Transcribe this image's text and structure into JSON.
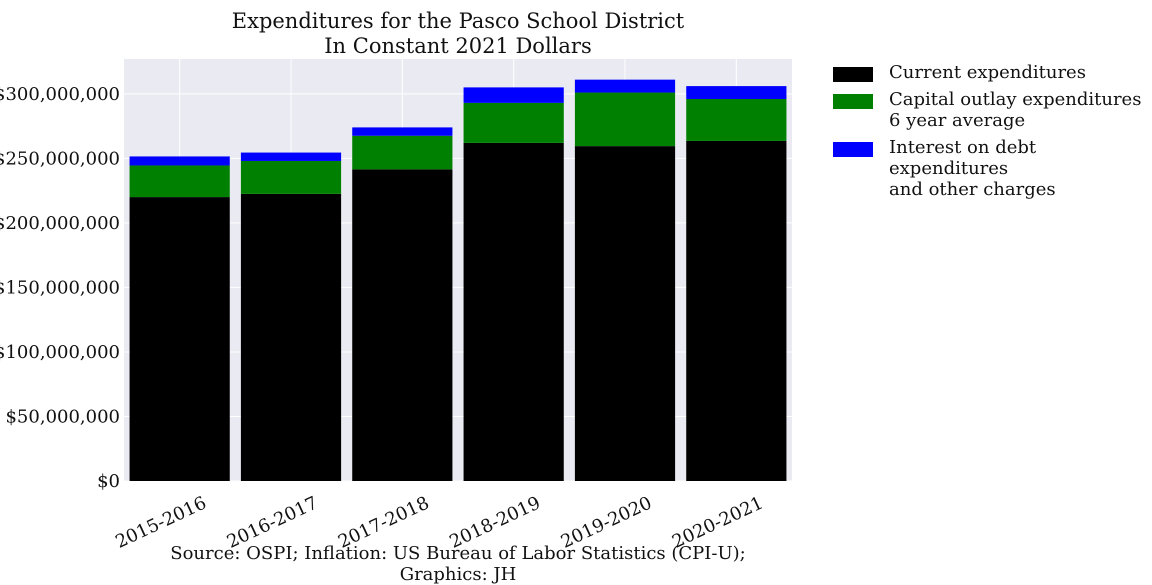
{
  "chart_data": {
    "type": "bar",
    "stacked": true,
    "title": "Expenditures for the Pasco School District",
    "subtitle": "In Constant 2021 Dollars",
    "xlabel": "",
    "ylabel": "",
    "categories": [
      "2015-2016",
      "2016-2017",
      "2017-2018",
      "2018-2019",
      "2019-2020",
      "2020-2021"
    ],
    "series": [
      {
        "name": "Current expenditures",
        "color": "#000000",
        "values": [
          220000000,
          222500000,
          241500000,
          262000000,
          259500000,
          263500000
        ]
      },
      {
        "name": "Capital outlay expenditures 6 year average",
        "name_lines": [
          "Capital outlay expenditures",
          "6 year average"
        ],
        "color": "#008000",
        "values": [
          24500000,
          25500000,
          26000000,
          31000000,
          41500000,
          32500000
        ]
      },
      {
        "name": "Interest on debt expenditures and other charges",
        "name_lines": [
          "Interest on debt expenditures",
          "and other charges"
        ],
        "color": "#0000ff",
        "values": [
          7000000,
          6500000,
          6500000,
          12000000,
          10000000,
          10000000
        ]
      }
    ],
    "ylim": [
      0,
      327000000
    ],
    "yticks": [
      0,
      50000000,
      100000000,
      150000000,
      200000000,
      250000000,
      300000000
    ],
    "ytick_labels": [
      "$0",
      "$50,000,000",
      "$100,000,000",
      "$150,000,000",
      "$200,000,000",
      "$250,000,000",
      "$300,000,000"
    ],
    "grid": true,
    "legend_position": "outside-right",
    "source": "Source: OSPI; Inflation: US Bureau of Labor Statistics (CPI-U); Graphics: JH"
  }
}
